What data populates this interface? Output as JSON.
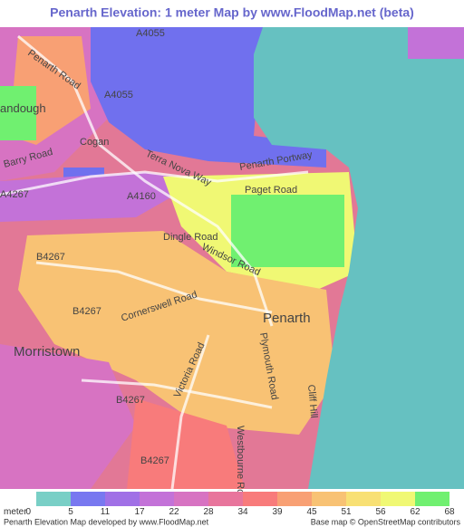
{
  "title": "Penarth Elevation: 1 meter Map by www.FloodMap.net (beta)",
  "map": {
    "labels": [
      "A4055",
      "Penarth Road",
      "A4055",
      "andough",
      "Barry Road",
      "Cogan",
      "Terra Nova Way",
      "Penarth Portway",
      "Paget Road",
      "A4160",
      "A4267",
      "Dingle Road",
      "Windsor Road",
      "B4267",
      "B4267",
      "Cornerswell Road",
      "Penarth",
      "Morristown",
      "Victoria Road",
      "Plymouth Road",
      "Cliff Hill",
      "B4267",
      "B4267",
      "Westbourne Road"
    ]
  },
  "legend": {
    "unit": "meter",
    "values": [
      0,
      5,
      11,
      17,
      22,
      28,
      34,
      39,
      45,
      51,
      56,
      62,
      68
    ],
    "colors": [
      "#79cfc6",
      "#7878f0",
      "#a070e6",
      "#c372d8",
      "#d773c2",
      "#e8759c",
      "#f87b7b",
      "#f8a074",
      "#f8c274",
      "#f8e074",
      "#f0f874",
      "#70f070"
    ]
  },
  "footer": {
    "left": "Penarth Elevation Map developed by www.FloodMap.net",
    "right": "Base map © OpenStreetMap contributors"
  }
}
